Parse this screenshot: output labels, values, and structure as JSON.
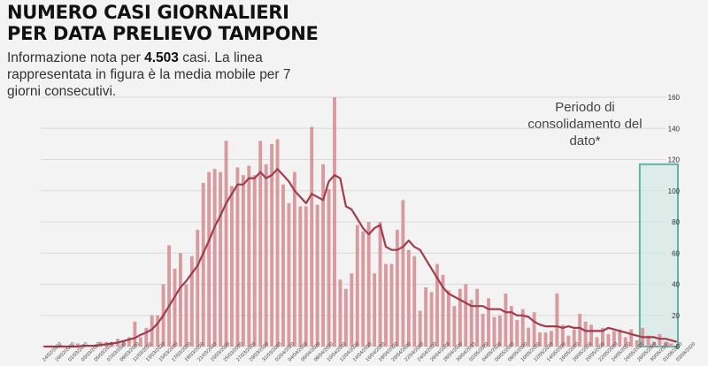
{
  "header": {
    "title_line1": "NUMERO CASI GIORNALIERI",
    "title_line2": "PER DATA PRELIEVO TAMPONE",
    "subtitle_prefix": "Informazione nota per",
    "subtitle_value": "4.503",
    "subtitle_suffix": "casi. La linea rappresentata in figura è la media mobile per 7 giorni consecutivi."
  },
  "consolidation": {
    "label": "Periodo di consolidamento del dato*"
  },
  "colors": {
    "bar": "#d89a9e",
    "bar_stroke": "#c98a8f",
    "line": "#a33b4d",
    "grid": "#d9d9d9",
    "box": "#5fb3a8",
    "box_fill": "#cfe7e2"
  },
  "chart_data": {
    "type": "bar",
    "ylim": [
      0,
      160
    ],
    "yticks": [
      0,
      20,
      40,
      60,
      80,
      100,
      120,
      140,
      160
    ],
    "x_tick_labels": [
      "24/02/2020",
      "26/02/2020",
      "01/03/2020",
      "03/03/2020",
      "05/03/2020",
      "07/03/2020",
      "09/03/2020",
      "11/03/2020",
      "13/03/2020",
      "15/03/2020",
      "17/03/2020",
      "19/03/2020",
      "21/03/2020",
      "23/03/2020",
      "25/03/2020",
      "27/03/2020",
      "29/03/2020",
      "31/03/2020",
      "02/04/2020",
      "04/04/2020",
      "06/04/2020",
      "08/04/2020",
      "10/04/2020",
      "12/04/2020",
      "14/04/2020",
      "16/04/2020",
      "18/04/2020",
      "20/04/2020",
      "22/04/2020",
      "24/04/2020",
      "26/04/2020",
      "28/04/2020",
      "30/04/2020",
      "02/05/2020",
      "04/05/2020",
      "06/05/2020",
      "08/05/2020",
      "10/05/2020",
      "12/05/2020",
      "14/05/2020",
      "16/05/2020",
      "18/05/2020",
      "20/05/2020",
      "22/05/2020",
      "24/05/2020",
      "26/05/2020",
      "28/05/2020",
      "30/05/2020",
      "01/06/2020",
      "03/06/2020"
    ],
    "series": [
      {
        "type": "bar",
        "values": [
          0,
          0,
          0,
          1,
          0,
          1,
          2,
          0,
          0,
          0,
          3,
          3,
          3,
          5,
          4,
          6,
          16,
          6,
          12,
          20,
          20,
          40,
          65,
          50,
          60,
          40,
          58,
          75,
          105,
          112,
          114,
          112,
          132,
          103,
          115,
          110,
          116,
          110,
          132,
          117,
          130,
          133,
          104,
          92,
          112,
          90,
          90,
          141,
          91,
          117,
          101,
          160,
          43,
          37,
          47,
          78,
          74,
          80,
          47,
          80,
          53,
          53,
          75,
          94,
          62,
          58,
          23,
          38,
          35,
          53,
          46,
          36,
          26,
          37,
          40,
          30,
          37,
          21,
          31,
          19,
          20,
          34,
          26,
          17,
          24,
          12,
          22,
          9,
          9,
          10,
          34,
          14,
          7,
          11,
          21,
          16,
          14,
          6,
          12,
          8,
          10,
          11,
          6,
          11,
          4,
          12,
          7,
          3,
          8,
          3,
          2,
          0
        ],
        "end_date": "03/06/2020"
      },
      {
        "type": "line",
        "values": [
          0,
          0,
          0,
          0,
          0,
          0,
          0,
          0.5,
          0.5,
          0.5,
          1,
          1.5,
          2,
          2.5,
          3.5,
          4.5,
          5.5,
          7.5,
          9,
          11,
          15,
          20,
          26,
          32,
          38,
          42,
          47,
          52,
          60,
          68,
          77,
          84,
          92,
          98,
          104,
          104,
          108,
          108,
          112,
          108,
          110,
          114,
          110,
          106,
          100,
          96,
          92,
          98,
          96,
          94,
          106,
          110,
          108,
          90,
          88,
          82,
          76,
          72,
          76,
          78,
          64,
          62,
          62,
          64,
          68,
          64,
          62,
          56,
          50,
          44,
          38,
          34,
          32,
          30,
          28,
          26,
          26,
          26,
          24,
          24,
          24,
          22,
          22,
          20,
          20,
          19,
          16,
          14,
          13,
          13,
          13,
          12,
          13,
          12,
          12,
          10,
          10,
          10,
          10,
          12,
          11,
          10,
          9,
          8,
          7,
          6,
          6,
          6,
          5,
          5,
          4,
          3
        ]
      }
    ],
    "highlight_start_date": "28/05/2020",
    "highlight_end_date": "03/06/2020"
  }
}
